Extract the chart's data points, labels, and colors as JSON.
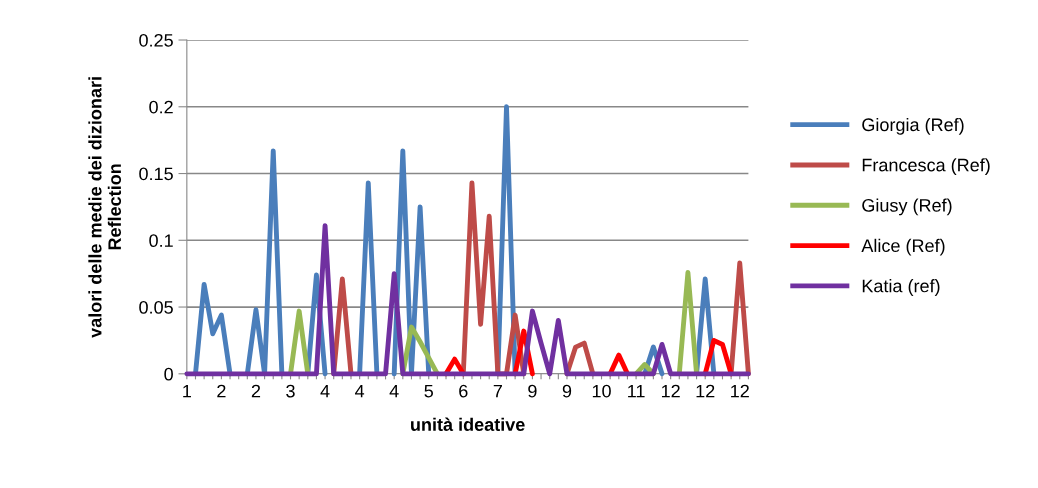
{
  "chart_data": {
    "type": "line",
    "xlabel": "unità ideative",
    "ylabel": "valori delle medie dei dizionari\nReflection",
    "categories": [
      "1",
      null,
      null,
      null,
      "2",
      null,
      null,
      null,
      "2",
      null,
      null,
      null,
      "3",
      null,
      null,
      null,
      "4",
      null,
      null,
      null,
      "4",
      null,
      null,
      null,
      "4",
      null,
      null,
      null,
      "5",
      null,
      null,
      null,
      "6",
      null,
      null,
      null,
      "7",
      null,
      null,
      null,
      "9",
      null,
      null,
      null,
      "9",
      null,
      null,
      null,
      "10",
      null,
      null,
      null,
      "11",
      null,
      null,
      null,
      "12",
      null,
      null,
      null,
      "12",
      null,
      null,
      null,
      "12",
      null
    ],
    "series": [
      {
        "name": "Giorgia (Ref)",
        "color": "#4a7ebb",
        "values": [
          null,
          0,
          0.067,
          0.03,
          0.044,
          0,
          null,
          0,
          0.048,
          0,
          0.167,
          0,
          null,
          null,
          0,
          0.074,
          0,
          null,
          null,
          null,
          0,
          0.143,
          0,
          null,
          0,
          0.167,
          0,
          0.125,
          0,
          null,
          null,
          null,
          null,
          null,
          null,
          null,
          0,
          0.2,
          0,
          null,
          null,
          null,
          null,
          null,
          null,
          null,
          null,
          null,
          null,
          null,
          null,
          null,
          null,
          0,
          0.02,
          0,
          null,
          null,
          null,
          0,
          0.071,
          0,
          null,
          null,
          null,
          null
        ]
      },
      {
        "name": "Francesca (Ref)",
        "color": "#be4b48",
        "values": [
          null,
          null,
          null,
          null,
          null,
          null,
          null,
          null,
          null,
          null,
          null,
          null,
          null,
          null,
          null,
          null,
          null,
          0,
          0.071,
          0,
          null,
          null,
          null,
          null,
          null,
          null,
          null,
          null,
          null,
          null,
          null,
          null,
          0,
          0.143,
          0.037,
          0.118,
          0,
          0,
          0.044,
          0,
          null,
          null,
          null,
          null,
          0,
          0.02,
          0.023,
          0,
          null,
          null,
          null,
          null,
          null,
          null,
          null,
          null,
          null,
          null,
          null,
          null,
          null,
          null,
          null,
          0,
          0.083,
          0
        ]
      },
      {
        "name": "Giusy (Ref)",
        "color": "#98b954",
        "values": [
          null,
          null,
          null,
          null,
          null,
          null,
          null,
          null,
          null,
          null,
          null,
          null,
          0,
          0.047,
          0,
          null,
          null,
          null,
          null,
          null,
          null,
          null,
          null,
          null,
          null,
          0,
          0.035,
          0.024,
          0.012,
          0,
          null,
          null,
          null,
          null,
          null,
          null,
          null,
          null,
          null,
          null,
          null,
          null,
          null,
          null,
          null,
          null,
          null,
          null,
          null,
          null,
          null,
          null,
          0,
          0.007,
          0,
          null,
          null,
          0,
          0.076,
          0,
          null,
          null,
          null,
          null,
          null,
          null
        ]
      },
      {
        "name": "Alice (Ref)",
        "color": "#ff0000",
        "values": [
          null,
          null,
          null,
          null,
          null,
          null,
          null,
          null,
          null,
          null,
          null,
          null,
          null,
          null,
          null,
          null,
          null,
          null,
          null,
          null,
          null,
          null,
          null,
          null,
          null,
          null,
          null,
          null,
          null,
          null,
          0,
          0.011,
          0,
          null,
          null,
          null,
          null,
          null,
          0,
          0.032,
          0,
          null,
          null,
          null,
          null,
          null,
          null,
          null,
          null,
          0,
          0.014,
          0,
          null,
          null,
          null,
          null,
          null,
          null,
          null,
          null,
          0,
          0.025,
          0.022,
          0,
          null,
          null
        ]
      },
      {
        "name": "Katia (ref)",
        "color": "#7030a0",
        "values": [
          0,
          0,
          0,
          0,
          0,
          0,
          0,
          0,
          0,
          0,
          0,
          0,
          0,
          0,
          0,
          0,
          0.111,
          0,
          0,
          0,
          0,
          0,
          0,
          0,
          0.075,
          0,
          0,
          0,
          0,
          0,
          0,
          0,
          0,
          0,
          0,
          0,
          0,
          0,
          0,
          0,
          0.047,
          0.023,
          0,
          0.04,
          0,
          0,
          0,
          0,
          0,
          0,
          0,
          0,
          0,
          0,
          0,
          0.022,
          0,
          0,
          0,
          0,
          0,
          0,
          0,
          0,
          0,
          0
        ]
      }
    ],
    "ylim": [
      0,
      0.25
    ],
    "yticks": [
      0,
      0.05,
      0.1,
      0.15,
      0.2,
      0.25
    ],
    "grid": "y",
    "legend": "right",
    "marker": "none",
    "line_style": "solid"
  }
}
